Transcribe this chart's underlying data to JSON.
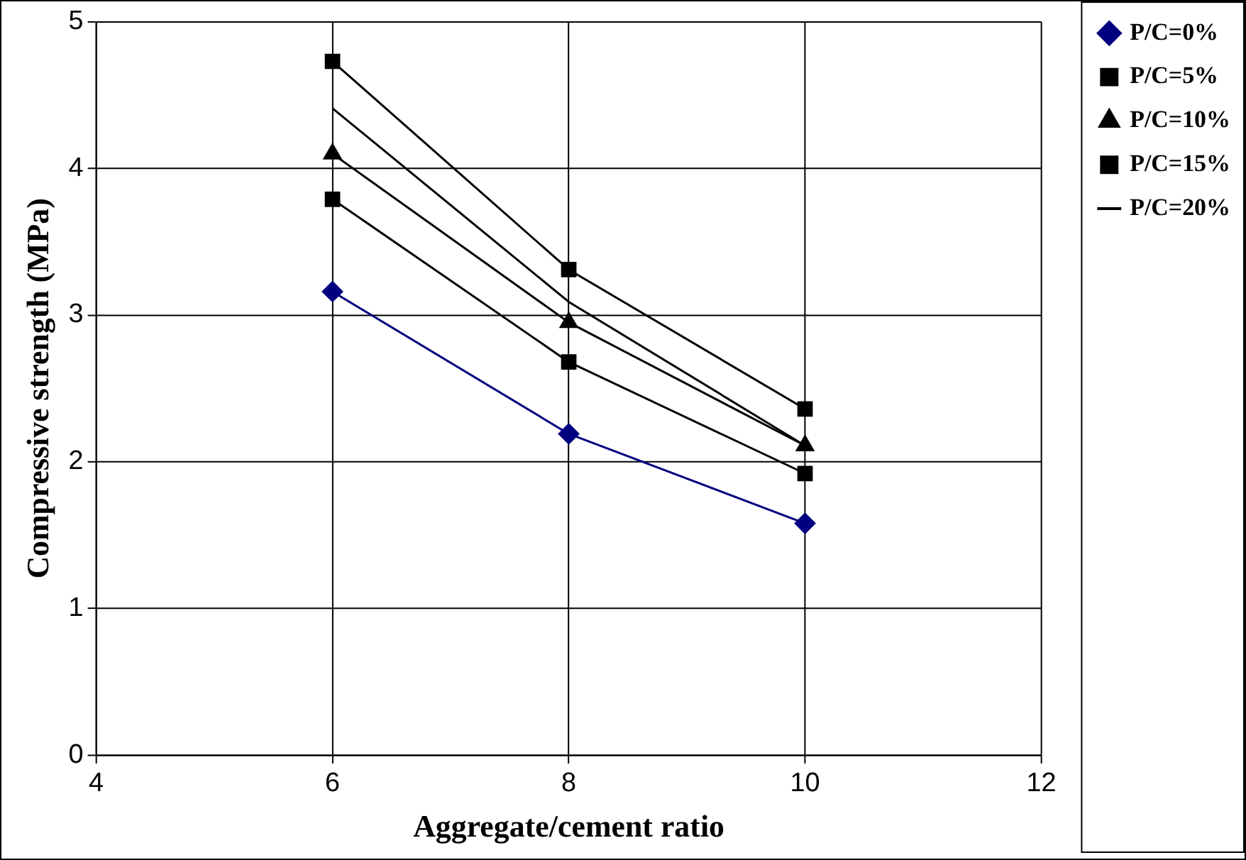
{
  "chart_data": {
    "type": "line",
    "xlabel": "Aggregate/cement ratio",
    "ylabel": "Compressive strength (MPa)",
    "x": [
      6,
      8,
      10
    ],
    "series": [
      {
        "name": "P/C=0%",
        "color": "#000080",
        "values": [
          3.16,
          2.19,
          1.58
        ],
        "marker": "diamond"
      },
      {
        "name": "P/C=5%",
        "color": "#000000",
        "values": [
          3.79,
          2.68,
          1.92
        ],
        "marker": "square"
      },
      {
        "name": "P/C=10%",
        "color": "#000000",
        "values": [
          4.1,
          2.95,
          2.11
        ],
        "marker": "triangle"
      },
      {
        "name": "P/C=15%",
        "color": "#000000",
        "values": [
          4.73,
          3.31,
          2.36
        ],
        "marker": "square"
      },
      {
        "name": "P/C=20%",
        "color": "#000000",
        "values": [
          4.41,
          3.09,
          2.11
        ],
        "marker": "none"
      }
    ],
    "xlim": [
      4,
      12
    ],
    "xticks": [
      4,
      6,
      8,
      10,
      12
    ],
    "ylim": [
      0,
      5
    ],
    "yticks": [
      0,
      1,
      2,
      3,
      4,
      5
    ],
    "grid": true,
    "legend": "top right",
    "line_style": "solid"
  }
}
